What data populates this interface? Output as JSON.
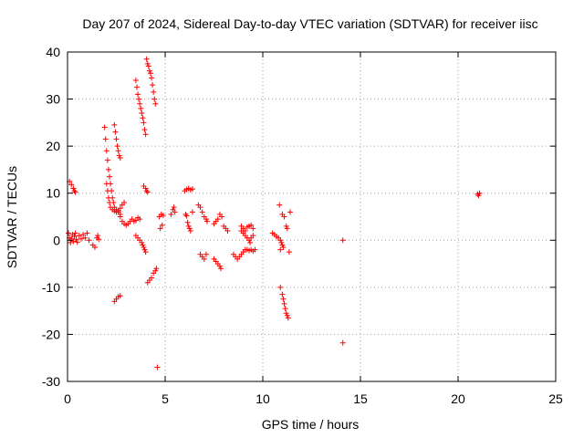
{
  "chart_data": {
    "type": "scatter",
    "title": "Day 207 of 2024, Sidereal Day-to-day VTEC variation (SDTVAR) for receiver iisc",
    "xlabel": "GPS time / hours",
    "ylabel": "SDTVAR / TECUs",
    "xlim": [
      0,
      25
    ],
    "ylim": [
      -30,
      40
    ],
    "xticks": [
      "0",
      "5",
      "10",
      "15",
      "20",
      "25"
    ],
    "yticks": [
      "-30",
      "-20",
      "-10",
      "0",
      "10",
      "20",
      "30",
      "40"
    ],
    "grid": true,
    "marker": "plus",
    "color": "#ff0000",
    "series": [
      {
        "points": [
          [
            0.05,
            1.5
          ],
          [
            0.1,
            0.5
          ],
          [
            0.15,
            -0.5
          ],
          [
            0.2,
            0.3
          ],
          [
            0.25,
            1.2
          ],
          [
            0.3,
            -0.2
          ],
          [
            0.35,
            0.8
          ],
          [
            0.4,
            1.5
          ],
          [
            0.45,
            0.2
          ],
          [
            0.5,
            -0.4
          ],
          [
            0.6,
            1.0
          ],
          [
            0.7,
            0.3
          ],
          [
            0.8,
            1.2
          ],
          [
            0.1,
            12.5
          ],
          [
            0.2,
            11.8
          ],
          [
            0.3,
            11.0
          ],
          [
            0.35,
            10.5
          ],
          [
            0.4,
            10.2
          ],
          [
            0.9,
            0.5
          ],
          [
            1.0,
            1.5
          ],
          [
            1.1,
            0.0
          ],
          [
            1.3,
            -1.0
          ],
          [
            1.4,
            -1.5
          ],
          [
            1.5,
            0.5
          ],
          [
            1.55,
            1.0
          ],
          [
            1.6,
            0.2
          ],
          [
            1.9,
            24.0
          ],
          [
            1.95,
            21.5
          ],
          [
            2.0,
            19.0
          ],
          [
            2.05,
            17.0
          ],
          [
            2.1,
            15.0
          ],
          [
            2.15,
            13.5
          ],
          [
            2.2,
            12.0
          ],
          [
            2.25,
            10.5
          ],
          [
            2.3,
            9.0
          ],
          [
            2.35,
            8.0
          ],
          [
            2.4,
            7.0
          ],
          [
            2.5,
            6.5
          ],
          [
            2.6,
            6.0
          ],
          [
            2.7,
            5.5
          ],
          [
            2.0,
            12.0
          ],
          [
            2.05,
            10.5
          ],
          [
            2.1,
            9.0
          ],
          [
            2.15,
            8.0
          ],
          [
            2.2,
            7.0
          ],
          [
            2.3,
            6.5
          ],
          [
            2.4,
            6.2
          ],
          [
            2.5,
            6.0
          ],
          [
            2.6,
            6.3
          ],
          [
            2.7,
            6.8
          ],
          [
            2.8,
            7.5
          ],
          [
            2.9,
            8.0
          ],
          [
            2.4,
            24.5
          ],
          [
            2.45,
            23.0
          ],
          [
            2.5,
            21.5
          ],
          [
            2.55,
            20.0
          ],
          [
            2.6,
            19.0
          ],
          [
            2.65,
            18.0
          ],
          [
            2.7,
            17.5
          ],
          [
            2.6,
            6.0
          ],
          [
            2.7,
            5.0
          ],
          [
            2.8,
            4.0
          ],
          [
            2.9,
            3.5
          ],
          [
            3.0,
            3.2
          ],
          [
            3.1,
            3.5
          ],
          [
            3.2,
            4.0
          ],
          [
            3.3,
            4.5
          ],
          [
            3.4,
            4.0
          ],
          [
            3.5,
            4.2
          ],
          [
            3.6,
            4.8
          ],
          [
            3.7,
            4.5
          ],
          [
            2.4,
            -13.0
          ],
          [
            2.5,
            -12.5
          ],
          [
            2.6,
            -12.0
          ],
          [
            2.7,
            -11.8
          ],
          [
            3.5,
            1.0
          ],
          [
            3.6,
            0.5
          ],
          [
            3.7,
            0.0
          ],
          [
            3.8,
            -0.5
          ],
          [
            3.85,
            -1.0
          ],
          [
            3.9,
            -1.5
          ],
          [
            3.95,
            -2.0
          ],
          [
            4.0,
            -2.5
          ],
          [
            3.5,
            34.0
          ],
          [
            3.55,
            32.5
          ],
          [
            3.6,
            31.0
          ],
          [
            3.65,
            30.0
          ],
          [
            3.7,
            29.0
          ],
          [
            3.75,
            28.0
          ],
          [
            3.8,
            27.0
          ],
          [
            3.85,
            26.0
          ],
          [
            3.9,
            25.0
          ],
          [
            3.95,
            23.5
          ],
          [
            4.0,
            22.5
          ],
          [
            4.05,
            38.5
          ],
          [
            4.1,
            37.5
          ],
          [
            4.15,
            37.0
          ],
          [
            4.2,
            36.0
          ],
          [
            4.25,
            35.5
          ],
          [
            4.3,
            34.5
          ],
          [
            4.35,
            33.0
          ],
          [
            4.4,
            31.5
          ],
          [
            4.45,
            30.0
          ],
          [
            4.5,
            29.0
          ],
          [
            3.9,
            11.5
          ],
          [
            4.0,
            11.0
          ],
          [
            4.05,
            10.5
          ],
          [
            4.1,
            10.2
          ],
          [
            4.1,
            -9.0
          ],
          [
            4.2,
            -8.5
          ],
          [
            4.3,
            -8.0
          ],
          [
            4.4,
            -7.0
          ],
          [
            4.5,
            -6.5
          ],
          [
            4.55,
            -6.0
          ],
          [
            4.6,
            -27.0
          ],
          [
            4.7,
            5.0
          ],
          [
            4.8,
            5.5
          ],
          [
            4.9,
            5.3
          ],
          [
            4.75,
            2.5
          ],
          [
            4.85,
            3.2
          ],
          [
            5.3,
            5.5
          ],
          [
            5.4,
            6.5
          ],
          [
            5.45,
            7.0
          ],
          [
            5.5,
            6.0
          ],
          [
            6.0,
            10.5
          ],
          [
            6.1,
            10.8
          ],
          [
            6.2,
            11.0
          ],
          [
            6.3,
            10.7
          ],
          [
            6.4,
            10.9
          ],
          [
            6.05,
            5.5
          ],
          [
            6.1,
            5.2
          ],
          [
            6.15,
            3.8
          ],
          [
            6.2,
            3.0
          ],
          [
            6.25,
            2.5
          ],
          [
            6.3,
            2.0
          ],
          [
            6.4,
            6.0
          ],
          [
            6.7,
            7.5
          ],
          [
            6.8,
            7.0
          ],
          [
            6.9,
            6.0
          ],
          [
            7.0,
            5.0
          ],
          [
            7.1,
            4.5
          ],
          [
            7.15,
            4.0
          ],
          [
            6.8,
            -3.0
          ],
          [
            6.9,
            -3.5
          ],
          [
            7.0,
            -4.0
          ],
          [
            7.1,
            -3.0
          ],
          [
            7.5,
            -4.0
          ],
          [
            7.6,
            -4.5
          ],
          [
            7.7,
            -5.0
          ],
          [
            7.8,
            -5.5
          ],
          [
            7.85,
            -6.0
          ],
          [
            7.5,
            3.5
          ],
          [
            7.6,
            4.0
          ],
          [
            7.7,
            4.5
          ],
          [
            7.8,
            5.5
          ],
          [
            7.9,
            5.0
          ],
          [
            8.0,
            3.0
          ],
          [
            8.1,
            2.5
          ],
          [
            8.2,
            2.0
          ],
          [
            8.5,
            -3.0
          ],
          [
            8.6,
            -3.5
          ],
          [
            8.7,
            -4.0
          ],
          [
            8.8,
            -3.5
          ],
          [
            8.9,
            -3.0
          ],
          [
            9.0,
            -2.5
          ],
          [
            9.1,
            -2.0
          ],
          [
            9.2,
            -2.0
          ],
          [
            9.3,
            -2.2
          ],
          [
            9.4,
            -2.0
          ],
          [
            9.5,
            -2.3
          ],
          [
            9.6,
            -2.0
          ],
          [
            8.9,
            2.0
          ],
          [
            9.0,
            1.5
          ],
          [
            9.1,
            1.0
          ],
          [
            9.2,
            0.5
          ],
          [
            9.3,
            0.0
          ],
          [
            9.35,
            -0.5
          ],
          [
            9.4,
            0.5
          ],
          [
            9.5,
            1.0
          ],
          [
            8.9,
            3.0
          ],
          [
            9.0,
            2.5
          ],
          [
            9.1,
            2.0
          ],
          [
            9.2,
            2.8
          ],
          [
            9.3,
            3.0
          ],
          [
            9.4,
            3.2
          ],
          [
            9.5,
            2.5
          ],
          [
            10.5,
            1.5
          ],
          [
            10.6,
            1.2
          ],
          [
            10.7,
            0.8
          ],
          [
            10.8,
            0.5
          ],
          [
            10.9,
            0.0
          ],
          [
            10.95,
            -0.5
          ],
          [
            11.0,
            -1.0
          ],
          [
            11.05,
            -1.5
          ],
          [
            10.85,
            7.5
          ],
          [
            10.9,
            -2.0
          ],
          [
            11.0,
            5.5
          ],
          [
            11.1,
            5.0
          ],
          [
            11.2,
            3.0
          ],
          [
            11.25,
            2.5
          ],
          [
            11.4,
            6.0
          ],
          [
            11.35,
            -2.5
          ],
          [
            10.9,
            -10.0
          ],
          [
            11.0,
            -11.5
          ],
          [
            11.05,
            -12.5
          ],
          [
            11.1,
            -13.5
          ],
          [
            11.15,
            -14.5
          ],
          [
            11.2,
            -15.5
          ],
          [
            11.25,
            -16.0
          ],
          [
            11.3,
            -16.5
          ],
          [
            14.1,
            0.0
          ],
          [
            14.1,
            -21.8
          ],
          [
            21.0,
            9.8
          ],
          [
            21.05,
            9.5
          ],
          [
            21.1,
            10.0
          ]
        ]
      }
    ]
  }
}
